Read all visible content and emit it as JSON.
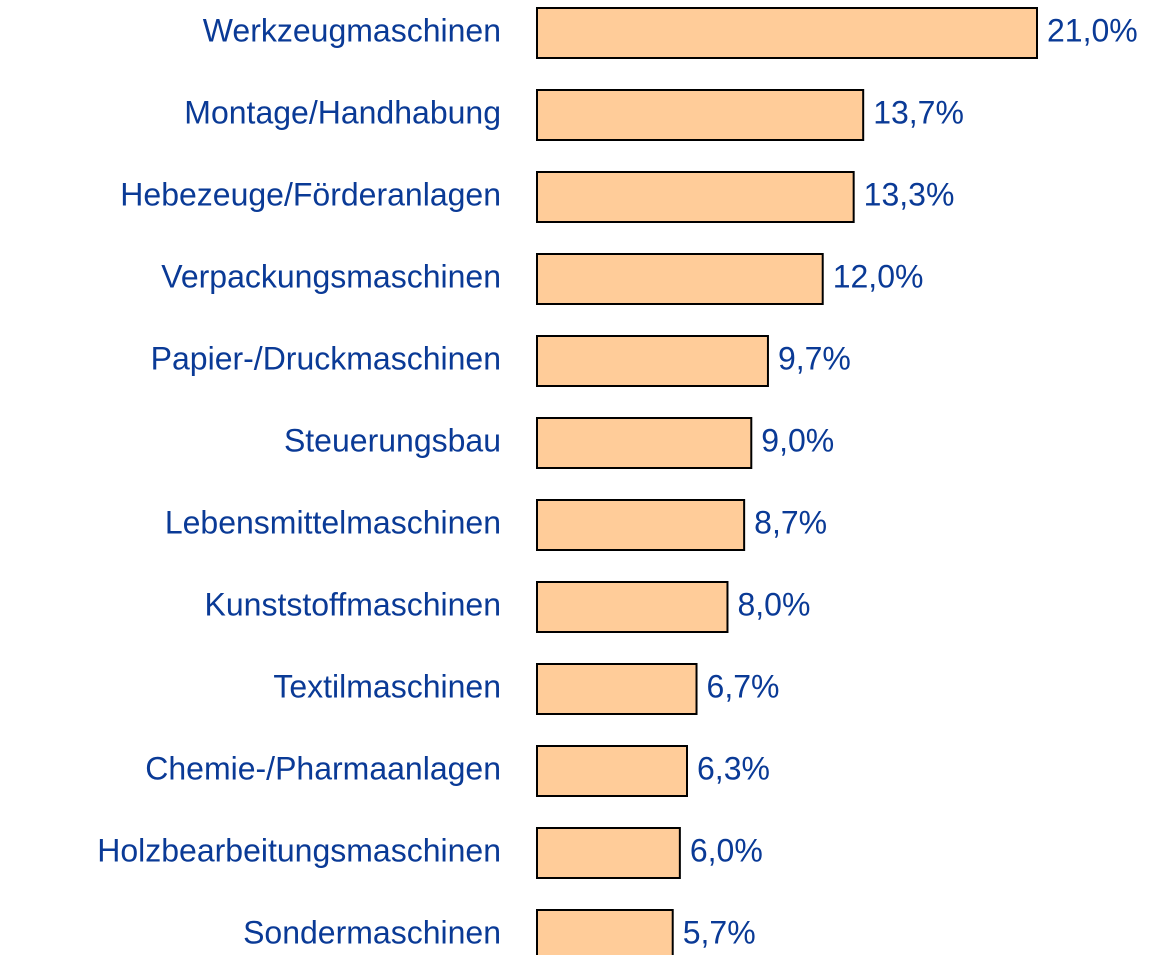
{
  "chart_data": {
    "type": "barh",
    "categories": [
      "Werkzeugmaschinen",
      "Montage/Handhabung",
      "Hebezeuge/Förderanlagen",
      "Verpackungsmaschinen",
      "Papier-/Druckmaschinen",
      "Steuerungsbau",
      "Lebensmittelmaschinen",
      "Kunststoffmaschinen",
      "Textilmaschinen",
      "Chemie-/Pharmaanlagen",
      "Holzbearbeitungsmaschinen",
      "Sondermaschinen"
    ],
    "values": [
      21.0,
      13.7,
      13.3,
      12.0,
      9.7,
      9.0,
      8.7,
      8.0,
      6.7,
      6.3,
      6.0,
      5.7
    ],
    "value_labels": [
      "21,0%",
      "13,7%",
      "13,3%",
      "12,0%",
      "9,7%",
      "9,0%",
      "8,7%",
      "8,0%",
      "6,7%",
      "6,3%",
      "6,0%",
      "5,7%"
    ],
    "color": "#ffcc99",
    "edgecolor": "#000000",
    "text_color": "#0a3a96"
  }
}
